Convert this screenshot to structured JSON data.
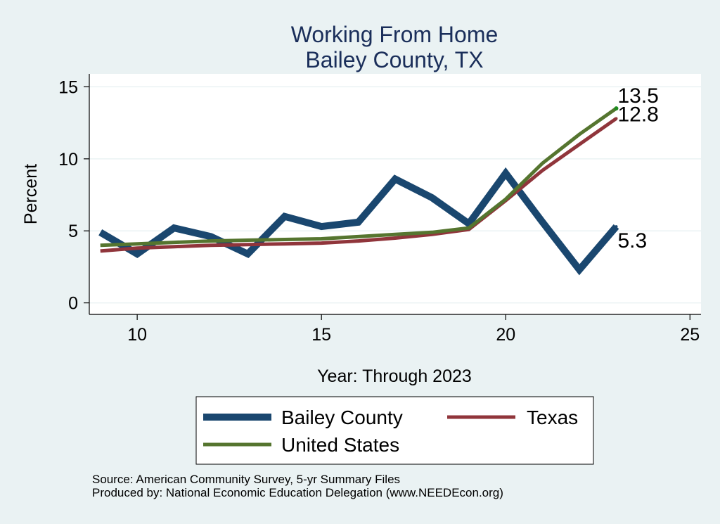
{
  "chart_data": {
    "type": "line",
    "title_line1": "Working From Home",
    "title_line2": "Bailey County, TX",
    "xlabel": "Year: Through 2023",
    "ylabel": "Percent",
    "xlim": [
      8.7,
      25.3
    ],
    "ylim": [
      -0.8,
      15.9
    ],
    "x_ticks": [
      10,
      15,
      20,
      25
    ],
    "y_ticks": [
      0,
      5,
      10,
      15
    ],
    "x_tick_labels": [
      "10",
      "15",
      "20",
      "25"
    ],
    "y_tick_labels": [
      "0",
      "5",
      "10",
      "15"
    ],
    "grid": true,
    "x": [
      9,
      10,
      11,
      12,
      13,
      14,
      15,
      16,
      17,
      18,
      19,
      20,
      21,
      22,
      23
    ],
    "series": [
      {
        "name": "Bailey County",
        "color": "#1a476f",
        "values": [
          4.9,
          3.4,
          5.2,
          4.6,
          3.4,
          6.0,
          5.3,
          5.6,
          8.6,
          7.3,
          5.5,
          9.0,
          5.6,
          2.3,
          5.3
        ],
        "end_label": "5.3"
      },
      {
        "name": "Texas",
        "color": "#90353b",
        "values": [
          3.6,
          3.8,
          3.9,
          4.0,
          4.05,
          4.1,
          4.15,
          4.3,
          4.5,
          4.75,
          5.1,
          7.1,
          9.2,
          11.0,
          12.8
        ],
        "end_label": "12.8"
      },
      {
        "name": "United States",
        "color": "#55752f",
        "values": [
          4.0,
          4.1,
          4.2,
          4.3,
          4.35,
          4.4,
          4.45,
          4.6,
          4.75,
          4.9,
          5.2,
          7.2,
          9.7,
          11.7,
          13.5
        ],
        "end_label": "13.5"
      }
    ],
    "legend_position": "bottom",
    "source_note": "Source: American Community Survey, 5-yr Summary Files",
    "producer_note": "Produced by: National Economic Education Delegation (www.NEEDEcon.org)"
  }
}
